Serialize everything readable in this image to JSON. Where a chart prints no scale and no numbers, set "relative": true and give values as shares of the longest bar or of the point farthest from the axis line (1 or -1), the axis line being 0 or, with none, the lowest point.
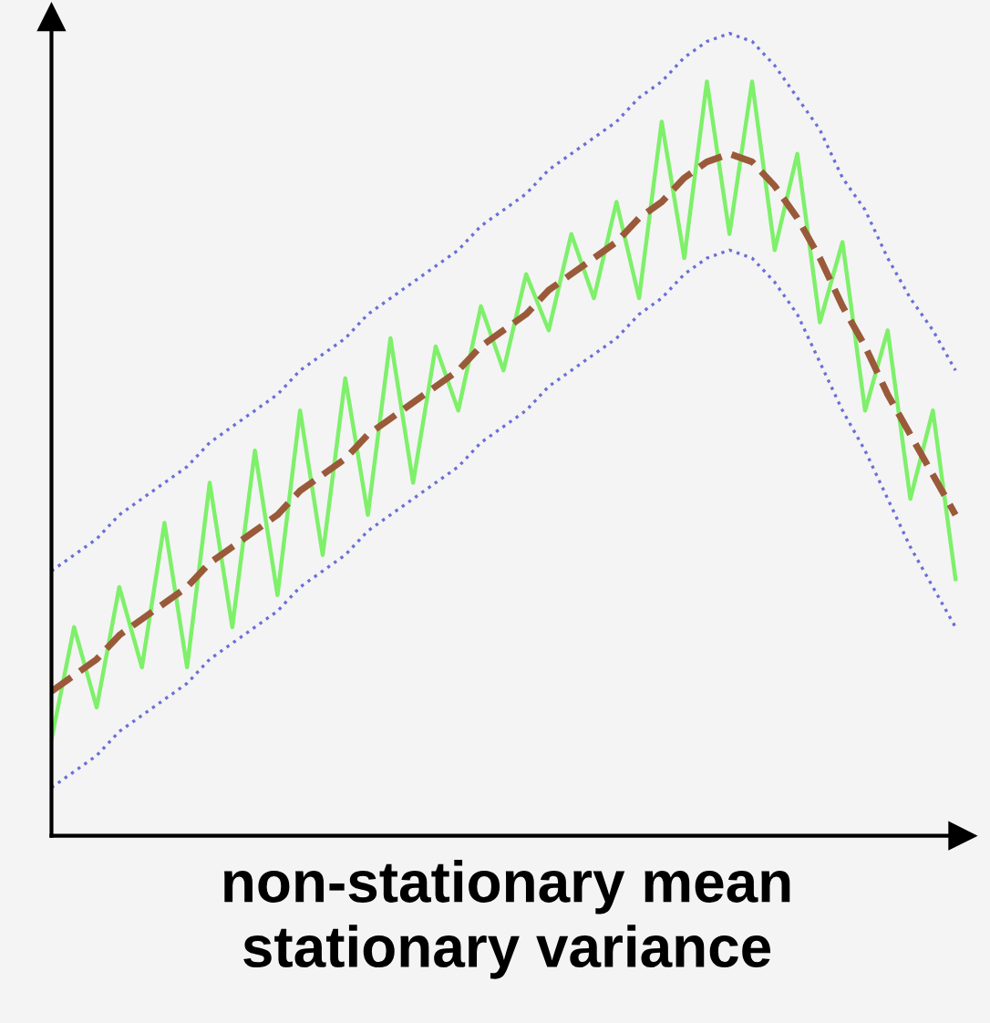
{
  "chart_data": {
    "type": "line",
    "relative": true,
    "xlabel": "non-stationary mean\nstationary variance",
    "categories": [
      null,
      null,
      null,
      null,
      null,
      null,
      null,
      null,
      null,
      null,
      null,
      null,
      null,
      null,
      null,
      null,
      null,
      null,
      null,
      null,
      null,
      null,
      null,
      null,
      null,
      null,
      null,
      null,
      null,
      null,
      null,
      null,
      null,
      null,
      null,
      null,
      null,
      null,
      null,
      null,
      null
    ],
    "grid": false,
    "legend": false,
    "marker": "none",
    "series": [
      {
        "color": "#6b6fd6",
        "line_style": "dotted",
        "values": [
          0.33,
          0.35,
          0.37,
          0.4,
          0.42,
          0.44,
          0.46,
          0.49,
          0.51,
          0.53,
          0.55,
          0.58,
          0.6,
          0.62,
          0.65,
          0.67,
          0.69,
          0.71,
          0.73,
          0.76,
          0.78,
          0.8,
          0.83,
          0.85,
          0.87,
          0.89,
          0.92,
          0.94,
          0.97,
          0.99,
          1.0,
          0.99,
          0.96,
          0.92,
          0.88,
          0.82,
          0.78,
          0.72,
          0.67,
          0.63,
          0.58
        ]
      },
      {
        "color": "#6b6fd6",
        "line_style": "dotted",
        "values": [
          0.06,
          0.08,
          0.1,
          0.13,
          0.15,
          0.17,
          0.19,
          0.22,
          0.24,
          0.26,
          0.28,
          0.31,
          0.33,
          0.35,
          0.38,
          0.4,
          0.42,
          0.44,
          0.46,
          0.49,
          0.51,
          0.53,
          0.56,
          0.58,
          0.6,
          0.62,
          0.65,
          0.67,
          0.7,
          0.72,
          0.73,
          0.72,
          0.69,
          0.65,
          0.59,
          0.53,
          0.48,
          0.42,
          0.36,
          0.31,
          0.26
        ]
      },
      {
        "color": "#7ef06a",
        "line_style": "solid",
        "values": [
          0.12,
          0.26,
          0.16,
          0.31,
          0.21,
          0.39,
          0.21,
          0.44,
          0.26,
          0.48,
          0.3,
          0.53,
          0.35,
          0.57,
          0.4,
          0.62,
          0.44,
          0.61,
          0.53,
          0.66,
          0.58,
          0.7,
          0.63,
          0.75,
          0.67,
          0.79,
          0.67,
          0.89,
          0.72,
          0.94,
          0.75,
          0.94,
          0.73,
          0.85,
          0.64,
          0.74,
          0.53,
          0.63,
          0.42,
          0.53,
          0.32
        ]
      },
      {
        "color": "#9a5a3a",
        "line_style": "dashed",
        "values": [
          0.18,
          0.2,
          0.22,
          0.25,
          0.27,
          0.29,
          0.31,
          0.34,
          0.36,
          0.38,
          0.4,
          0.43,
          0.45,
          0.47,
          0.5,
          0.52,
          0.54,
          0.56,
          0.58,
          0.61,
          0.63,
          0.65,
          0.68,
          0.7,
          0.72,
          0.74,
          0.77,
          0.79,
          0.82,
          0.84,
          0.85,
          0.84,
          0.81,
          0.77,
          0.72,
          0.66,
          0.61,
          0.55,
          0.5,
          0.45,
          0.4
        ]
      }
    ]
  }
}
